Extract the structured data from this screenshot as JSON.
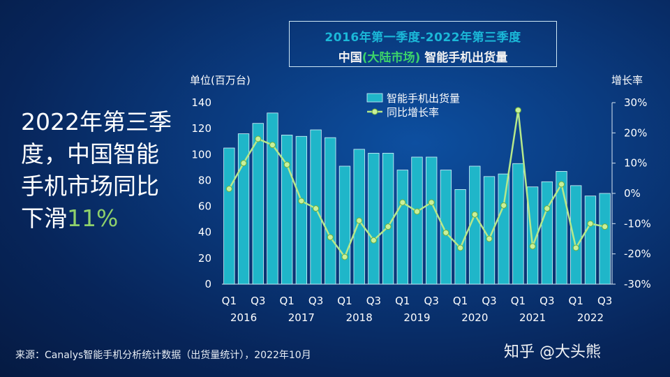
{
  "title_line1": "2016年第一季度-2022年第三季度",
  "title_line2_part1": "中国",
  "title_line2_part2": "(大陆市场)",
  "title_line2_part3": " 智能手机出货量",
  "headline_text": "2022年第三季度，中国智能手机市场同比下滑",
  "headline_pct": "11%",
  "source": "来源：Canalys智能手机分析统计数据（出货量统计），2022年10月",
  "watermark": "知乎 @大头熊",
  "colors": {
    "bar": "#1fb6c9",
    "line": "#b6e88a",
    "marker": "#c9f09a"
  },
  "chart_data": {
    "type": "bar+line",
    "ylabel_left": "单位(百万台)",
    "ylabel_right": "增长率",
    "ylim_left": [
      0,
      140
    ],
    "yticks_left": [
      "0",
      "20",
      "40",
      "60",
      "80",
      "100",
      "120",
      "140"
    ],
    "ylim_right": [
      -30,
      30
    ],
    "yticks_right": [
      "-30%",
      "-20%",
      "-10%",
      "0%",
      "10%",
      "20%",
      "30%"
    ],
    "x_tick_labels": [
      "Q1",
      "Q3",
      "Q1",
      "Q3",
      "Q1",
      "Q3",
      "Q1",
      "Q3",
      "Q1",
      "Q3",
      "Q1",
      "Q3",
      "Q1",
      "Q3"
    ],
    "year_labels": [
      "2016",
      "2017",
      "2018",
      "2019",
      "2020",
      "2021",
      "2022"
    ],
    "series": [
      {
        "name": "智能手机出货量",
        "type": "bar",
        "values": [
          105,
          116,
          124,
          132,
          115,
          114,
          119,
          113,
          91,
          104,
          101,
          101,
          88,
          98,
          98,
          88,
          73,
          91,
          83,
          85,
          93,
          75,
          79,
          87,
          76,
          68,
          70
        ]
      },
      {
        "name": "同比增长率",
        "type": "line",
        "values": [
          1.5,
          10,
          18,
          16,
          9.5,
          -2.5,
          -5,
          -14.5,
          -21,
          -9,
          -15.5,
          -11,
          -3,
          -6,
          -3,
          -13,
          -18,
          -7,
          -15,
          -4,
          27.5,
          -17.5,
          -5,
          3,
          -18,
          -10,
          -11
        ]
      }
    ]
  }
}
